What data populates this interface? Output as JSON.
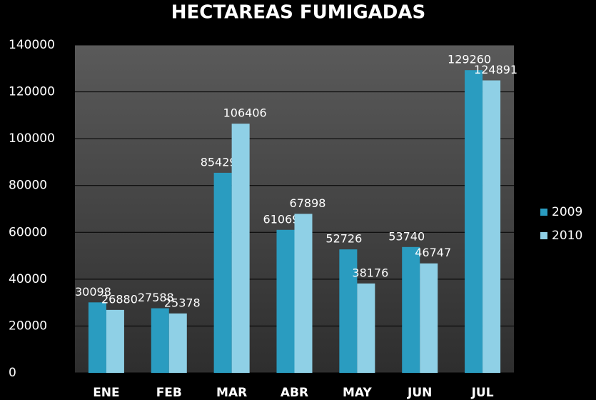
{
  "chart_data": {
    "type": "bar",
    "title": "HECTAREAS FUMIGADAS",
    "categories": [
      "ENE",
      "FEB",
      "MAR",
      "ABR",
      "MAY",
      "JUN",
      "JUL"
    ],
    "series": [
      {
        "name": "2009",
        "color": "#2a9cc0",
        "values": [
          30098,
          27588,
          85429,
          61069,
          52726,
          53740,
          129260
        ]
      },
      {
        "name": "2010",
        "color": "#8fd0e6",
        "values": [
          26880,
          25378,
          106406,
          67898,
          38176,
          46747,
          124891
        ]
      }
    ],
    "ylim": [
      0,
      140000
    ],
    "yticks": [
      0,
      20000,
      40000,
      60000,
      80000,
      100000,
      120000,
      140000
    ],
    "grid": true,
    "legend": "right"
  }
}
